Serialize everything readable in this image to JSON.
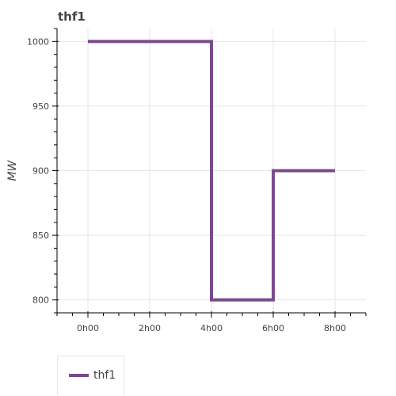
{
  "chart_data": {
    "type": "line",
    "title": "thf1",
    "xlabel": "",
    "ylabel": "MW",
    "x_ticks": [
      "0h00",
      "2h00",
      "4h00",
      "6h00",
      "8h00"
    ],
    "x_tick_hours": [
      0,
      2,
      4,
      6,
      8
    ],
    "xlim_hours": [
      -1,
      9
    ],
    "y_ticks": [
      800,
      850,
      900,
      950,
      1000
    ],
    "ylim": [
      790,
      1010
    ],
    "grid": true,
    "legend_position": "bottom-left, below plot",
    "series": [
      {
        "name": "thf1",
        "color": "#7a4b8c",
        "x_hours": [
          0,
          4,
          4,
          6,
          6,
          8
        ],
        "values": [
          1000,
          1000,
          800,
          800,
          900,
          900
        ]
      }
    ]
  }
}
